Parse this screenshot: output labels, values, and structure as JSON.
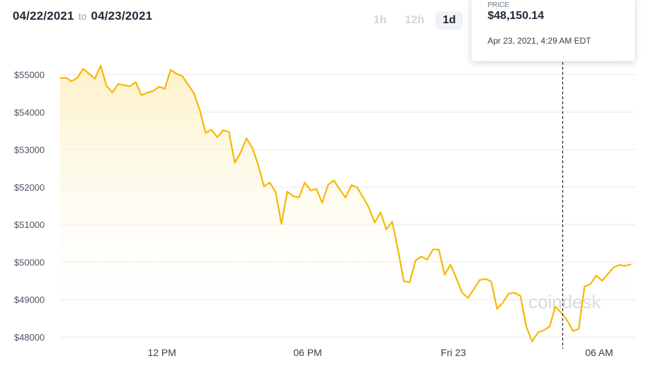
{
  "header": {
    "date_from": "04/22/2021",
    "to_label": "to",
    "date_to": "04/23/2021",
    "ranges": [
      "1h",
      "12h",
      "1d"
    ],
    "active_range": "1d"
  },
  "tooltip": {
    "label": "PRICE",
    "price": "$48,150.14",
    "time": "Apr 23, 2021, 4:29 AM EDT"
  },
  "watermark": "coindesk",
  "colors": {
    "line": "#f5b800",
    "fill_top": "#fdf0c4",
    "grid": "#e5e7eb",
    "crosshair": "#1f2937"
  },
  "chart_data": {
    "type": "area",
    "title": "",
    "xlabel": "",
    "ylabel": "",
    "ylim": [
      47800,
      55300
    ],
    "yticks": [
      55000,
      54000,
      53000,
      52000,
      51000,
      50000,
      49000,
      48000
    ],
    "ytick_labels": [
      "$55000",
      "$54000",
      "$53000",
      "$52000",
      "$51000",
      "$50000",
      "$49000",
      "$48000"
    ],
    "xrange_hours": [
      0,
      39.5
    ],
    "xticks": [
      7,
      17,
      27,
      37
    ],
    "xtick_labels": [
      "12 PM",
      "06 PM",
      "Fri 23",
      "06 AM"
    ],
    "crosshair_hour": 34.5,
    "grid": true,
    "legend": "none",
    "series": [
      {
        "name": "",
        "x": [
          0,
          0.4,
          0.8,
          1.2,
          1.6,
          2,
          2.4,
          2.8,
          3.2,
          3.6,
          4,
          4.4,
          4.8,
          5.2,
          5.6,
          6,
          6.4,
          6.8,
          7.2,
          7.6,
          8,
          8.4,
          8.8,
          9.2,
          9.6,
          10,
          10.4,
          10.8,
          11.2,
          11.6,
          12,
          12.4,
          12.8,
          13.2,
          13.6,
          14,
          14.4,
          14.8,
          15.2,
          15.6,
          16,
          16.4,
          16.8,
          17.2,
          17.6,
          18,
          18.4,
          18.8,
          19.2,
          19.6,
          20,
          20.4,
          20.8,
          21.2,
          21.6,
          22,
          22.4,
          22.8,
          23.2,
          23.6,
          24,
          24.4,
          24.8,
          25.2,
          25.6,
          26,
          26.4,
          26.8,
          27.2,
          27.6,
          28,
          28.4,
          28.8,
          29.2,
          29.6,
          30,
          30.4,
          30.8,
          31.2,
          31.6,
          32,
          32.4,
          32.8,
          33.2,
          33.6,
          34,
          34.4,
          34.8,
          35.2,
          35.6,
          36,
          36.4,
          36.8,
          37.2,
          37.6,
          38,
          38.4,
          38.8,
          39.2
        ],
        "y": [
          54900,
          54920,
          54820,
          54920,
          55150,
          55020,
          54890,
          55240,
          54700,
          54520,
          54750,
          54720,
          54690,
          54800,
          54450,
          54520,
          54560,
          54680,
          54620,
          55130,
          55020,
          54960,
          54730,
          54500,
          54050,
          53450,
          53530,
          53330,
          53520,
          53470,
          52650,
          52920,
          53300,
          53050,
          52600,
          52020,
          52120,
          51870,
          51020,
          51880,
          51760,
          51720,
          52120,
          51910,
          51950,
          51580,
          52060,
          52180,
          51940,
          51720,
          52050,
          51990,
          51730,
          51450,
          51050,
          51330,
          50870,
          51080,
          50320,
          49490,
          49460,
          50040,
          50150,
          50060,
          50340,
          50330,
          49660,
          49930,
          49570,
          49180,
          49040,
          49280,
          49520,
          49550,
          49480,
          48750,
          48920,
          49160,
          49180,
          49100,
          48280,
          47880,
          48120,
          48180,
          48280,
          48810,
          48650,
          48450,
          48160,
          48220,
          49350,
          49410,
          49640,
          49500,
          49680,
          49860,
          49920,
          49900,
          49940
        ]
      }
    ]
  }
}
